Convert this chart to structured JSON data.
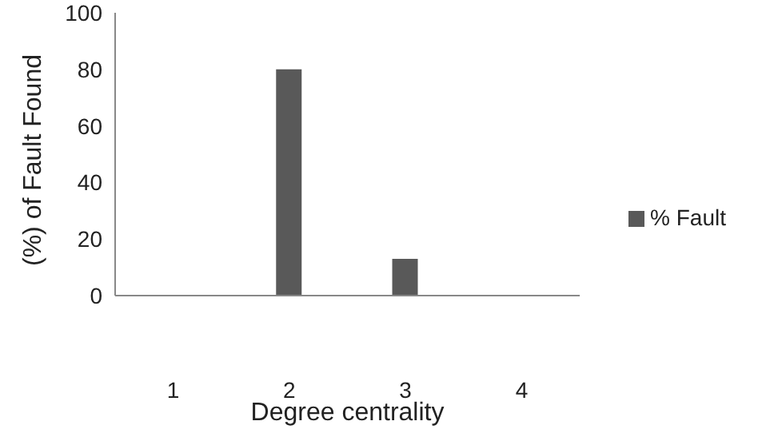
{
  "chart_data": {
    "type": "bar",
    "categories": [
      "1",
      "2",
      "3",
      "4"
    ],
    "series": [
      {
        "name": "% Fault",
        "color": "#595959",
        "values": [
          0,
          80,
          13,
          0
        ]
      }
    ],
    "xlabel": "Degree centrality",
    "ylabel": "(%) of Fault Found",
    "ylim": [
      0,
      100
    ],
    "yticks": [
      0,
      20,
      40,
      60,
      80,
      100
    ],
    "grid": false,
    "legend": "right"
  }
}
